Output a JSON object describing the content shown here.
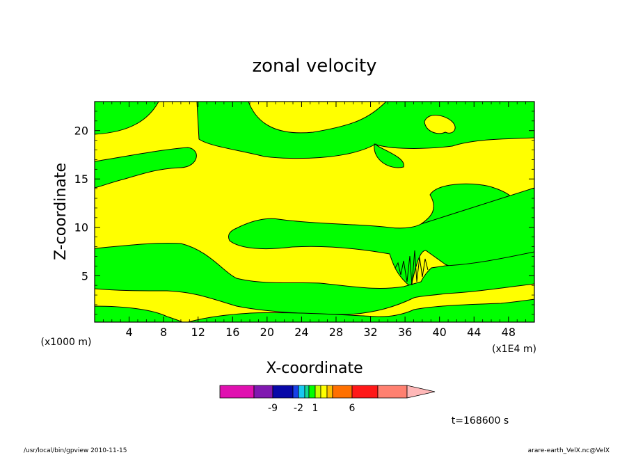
{
  "chart_data": {
    "type": "heatmap",
    "title": "zonal velocity",
    "xlabel": "X-coordinate",
    "ylabel": "Z-coordinate",
    "x_unit": "(x1E4 m)",
    "y_unit": "(x1000 m)",
    "xlim": [
      0,
      51
    ],
    "ylim": [
      0.2,
      23
    ],
    "x_ticks": [
      4,
      8,
      12,
      16,
      20,
      24,
      28,
      32,
      36,
      40,
      44,
      48
    ],
    "y_ticks": [
      5,
      10,
      15,
      20
    ],
    "colorbar": {
      "colors": [
        "#e010b0",
        "#8018b0",
        "#0808a8",
        "#1840e8",
        "#18c8f0",
        "#10d898",
        "#00ff00",
        "#c8ff00",
        "#ffff00",
        "#ffc000",
        "#ff7000",
        "#ff1818",
        "#ff8070",
        "#ffb8b8"
      ],
      "tick_labels": [
        "-9",
        "-2",
        "1",
        "6"
      ],
      "tick_values": [
        -9,
        -2,
        1,
        6
      ]
    },
    "contour_regions": [
      {
        "value": "negative",
        "color": "#00ff00"
      },
      {
        "value": "positive",
        "color": "#ffff00"
      }
    ]
  },
  "time_label": "t=168600 s",
  "footer_left": "/usr/local/bin/gpview  2010-11-15",
  "footer_right": "arare-earth_VelX.nc@VelX"
}
